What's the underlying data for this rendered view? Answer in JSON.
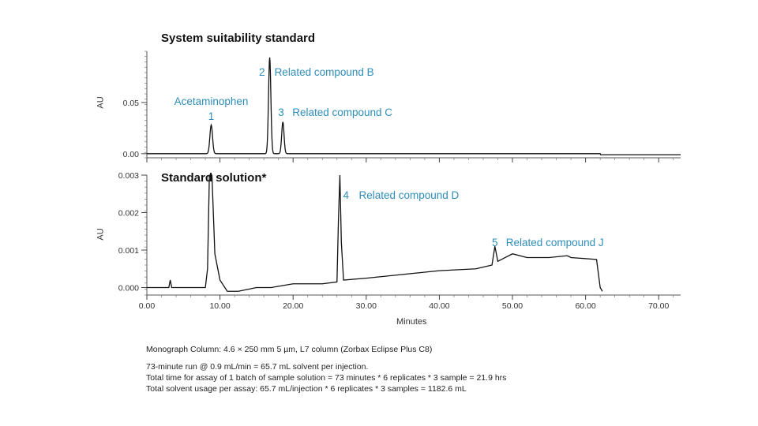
{
  "chart_data": [
    {
      "type": "line",
      "title": "System suitability standard",
      "xlabel": "",
      "ylabel": "AU",
      "xlim": [
        0,
        73
      ],
      "ylim": [
        -0.004,
        0.1
      ],
      "ytick_labels": [
        "0.00",
        "0.05"
      ],
      "yticks": [
        0,
        0.05
      ],
      "grid": false,
      "peaks": [
        {
          "number": "1",
          "name": "Acetaminophen",
          "x": 8.8,
          "height": 0.028
        },
        {
          "number": "2",
          "name": "Related compound B",
          "x": 16.8,
          "height": 0.094
        },
        {
          "number": "3",
          "name": "Related compound C",
          "x": 18.6,
          "height": 0.031
        }
      ],
      "baseline_end_x": 62.0
    },
    {
      "type": "line",
      "title": "Standard solution*",
      "xlabel": "Minutes",
      "ylabel": "AU",
      "xlim": [
        0,
        73
      ],
      "ylim": [
        -0.0002,
        0.003
      ],
      "ytick_labels": [
        "0.000",
        "0.001",
        "0.002",
        "0.003"
      ],
      "yticks": [
        0,
        0.001,
        0.002,
        0.003
      ],
      "xticks": [
        0,
        10,
        20,
        30,
        40,
        50,
        60,
        70
      ],
      "xtick_labels": [
        "0.00",
        "10.00",
        "20.00",
        "30.00",
        "40.00",
        "50.00",
        "60.00",
        "70.00"
      ],
      "grid": false,
      "peaks": [
        {
          "number": "4",
          "name": "Related compound D",
          "x": 26.4,
          "height": 0.003
        },
        {
          "number": "5",
          "name": "Related compound J",
          "x": 47.6,
          "height": 0.0011
        }
      ],
      "trace": [
        [
          0,
          0.0
        ],
        [
          3.0,
          0.0
        ],
        [
          3.2,
          0.0002
        ],
        [
          3.4,
          0.0
        ],
        [
          8.0,
          0.0
        ],
        [
          8.3,
          0.0005
        ],
        [
          8.55,
          0.003
        ],
        [
          8.9,
          0.003
        ],
        [
          9.3,
          0.0009
        ],
        [
          10.0,
          0.0002
        ],
        [
          11.0,
          -0.0001
        ],
        [
          12.5,
          -0.0001
        ],
        [
          15.0,
          0.0
        ],
        [
          17.0,
          0.0
        ],
        [
          20.0,
          0.0001
        ],
        [
          24.0,
          0.0001
        ],
        [
          26.0,
          0.00015
        ],
        [
          26.2,
          0.0018
        ],
        [
          26.4,
          0.003
        ],
        [
          26.6,
          0.0012
        ],
        [
          26.9,
          0.0002
        ],
        [
          30.0,
          0.00025
        ],
        [
          35.0,
          0.00035
        ],
        [
          40.0,
          0.00045
        ],
        [
          45.0,
          0.0005
        ],
        [
          47.2,
          0.0006
        ],
        [
          47.6,
          0.0011
        ],
        [
          48.0,
          0.0007
        ],
        [
          50.0,
          0.0009
        ],
        [
          52.0,
          0.0008
        ],
        [
          55.0,
          0.0008
        ],
        [
          57.5,
          0.00085
        ],
        [
          58.0,
          0.0008
        ],
        [
          61.5,
          0.00075
        ],
        [
          62.0,
          0.0
        ],
        [
          62.3,
          -0.0001
        ]
      ]
    }
  ],
  "panels": {
    "top_title": "System suitability standard",
    "bottom_title": "Standard solution*",
    "ylabel": "AU",
    "xlabel": "Minutes"
  },
  "notes": {
    "line1": "Monograph Column: 4.6 × 250 mm 5 µm, L7 column (Zorbax Eclipse Plus C8)",
    "line2": "73-minute run @ 0.9 mL/min = 65.7 mL solvent per injection.",
    "line3": "Total time for assay of 1 batch of sample solution = 73 minutes * 6 replicates * 3 sample = 21.9 hrs",
    "line4": "Total solvent usage per assay: 65.7 mL/injection * 6 replicates * 3 samples = 1182.6 mL"
  },
  "colors": {
    "trace": "#111111",
    "peak_label": "#2e8db8"
  }
}
